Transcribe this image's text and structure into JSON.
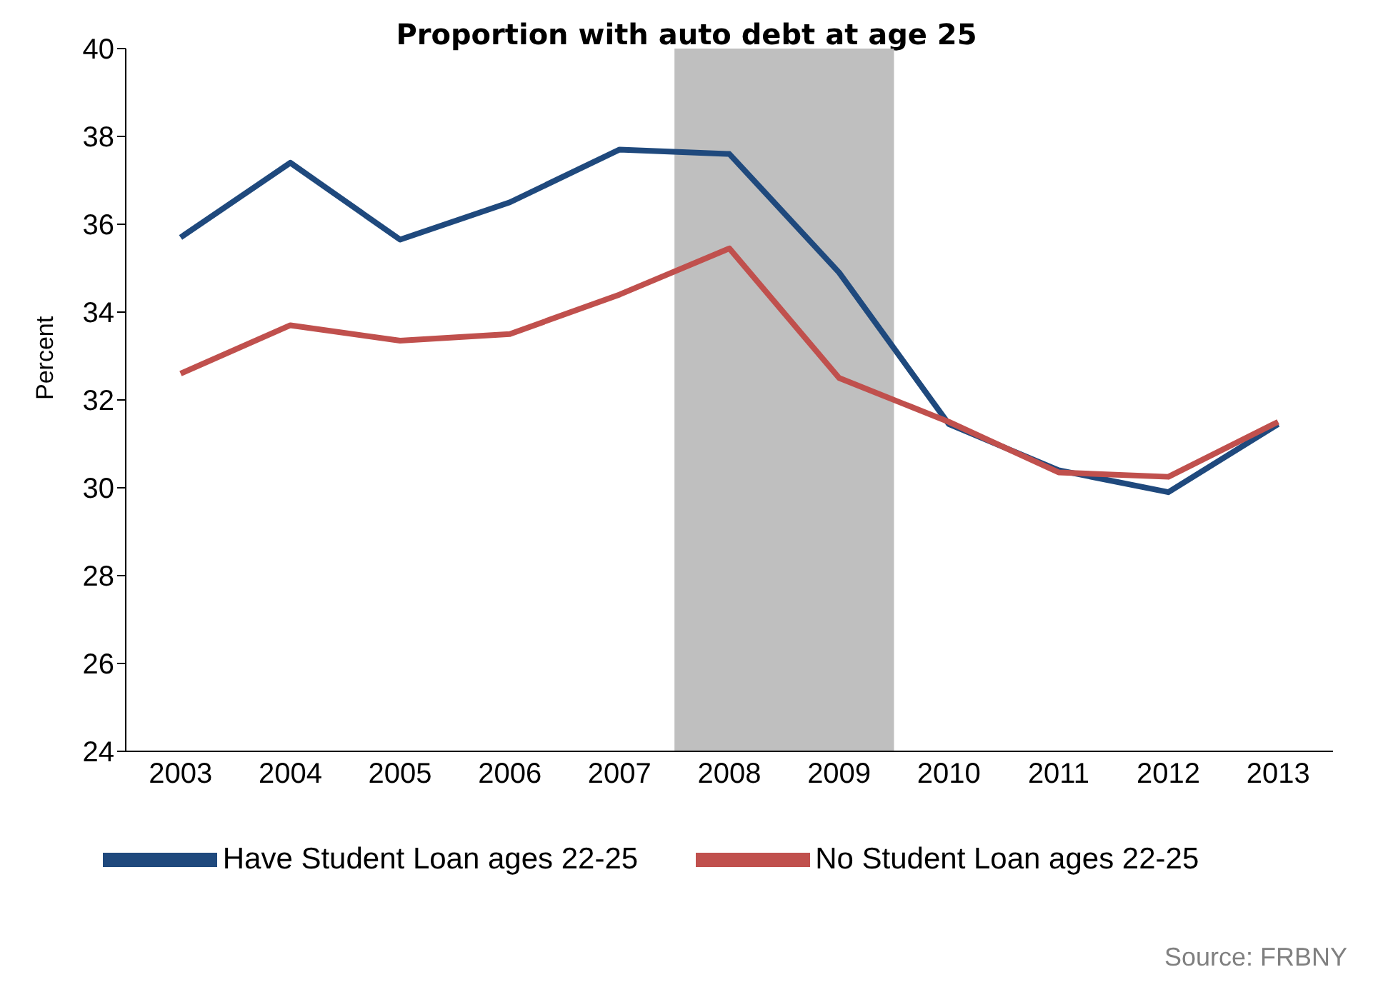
{
  "chart_data": {
    "type": "line",
    "title": "Proportion with auto debt at age 25",
    "ylabel": "Percent",
    "categories": [
      "2003",
      "2004",
      "2005",
      "2006",
      "2007",
      "2008",
      "2009",
      "2010",
      "2011",
      "2012",
      "2013"
    ],
    "series": [
      {
        "name": "Have Student Loan ages 22-25",
        "color": "#1f497d",
        "values": [
          35.7,
          37.4,
          35.65,
          36.5,
          37.7,
          37.6,
          34.9,
          31.45,
          30.4,
          29.9,
          31.45
        ]
      },
      {
        "name": "No Student Loan ages 22-25",
        "color": "#c0504d",
        "values": [
          32.6,
          33.7,
          33.35,
          33.5,
          34.4,
          35.45,
          32.5,
          31.5,
          30.35,
          30.25,
          31.5
        ]
      }
    ],
    "ylim": [
      24,
      40
    ],
    "yticks": [
      24,
      26,
      28,
      30,
      32,
      34,
      36,
      38,
      40
    ],
    "grid": false,
    "legend": "bottom",
    "marker": "none",
    "line_style": "solid",
    "bands": [
      {
        "axis": "x",
        "from": "2008",
        "to": "2009",
        "color": "#bfbfbf"
      }
    ],
    "annotations": [
      "Source: FRBNY"
    ]
  }
}
